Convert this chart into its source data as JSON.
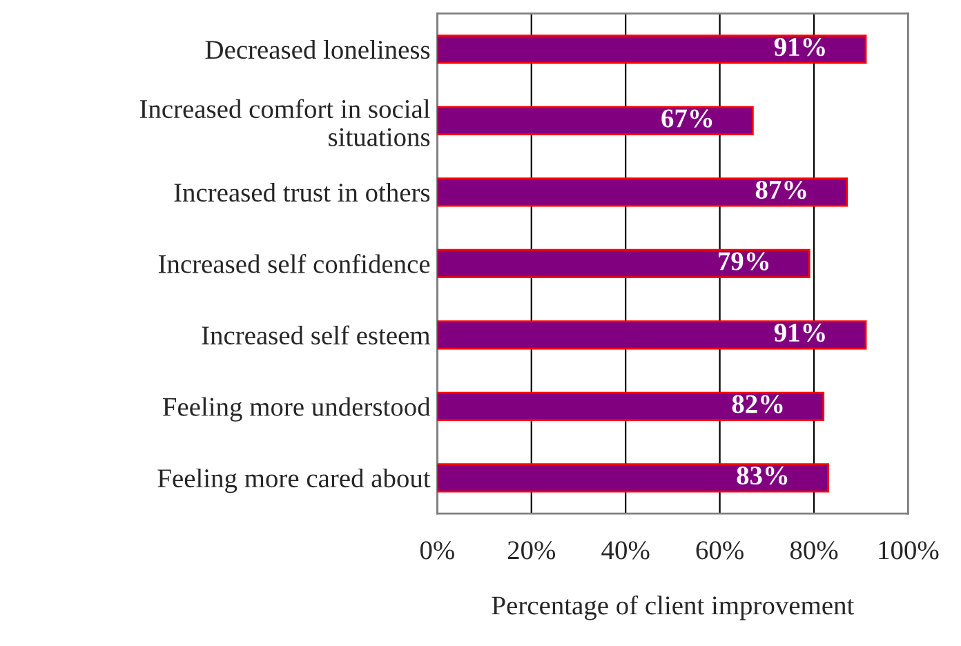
{
  "chart_data": {
    "type": "bar",
    "orientation": "horizontal",
    "xlabel": "Percentage of client improvement",
    "categories": [
      "Decreased loneliness",
      "Increased comfort in social\nsituations",
      "Increased trust in others",
      "Increased self confidence",
      "Increased self esteem",
      "Feeling more understood",
      "Feeling more cared about"
    ],
    "series": [
      {
        "color": "#800080",
        "values": [
          91,
          67,
          87,
          79,
          91,
          82,
          83
        ],
        "value_labels": [
          "91%",
          "67%",
          "87%",
          "79%",
          "91%",
          "82%",
          "83%"
        ]
      }
    ],
    "xlim": [
      0,
      100
    ],
    "xticks": [
      {
        "value": 0,
        "label": "0%"
      },
      {
        "value": 20,
        "label": "20%"
      },
      {
        "value": 40,
        "label": "40%"
      },
      {
        "value": 60,
        "label": "60%"
      },
      {
        "value": 80,
        "label": "80%"
      },
      {
        "value": 100,
        "label": "100%"
      }
    ],
    "grid": "x",
    "legend": false
  }
}
